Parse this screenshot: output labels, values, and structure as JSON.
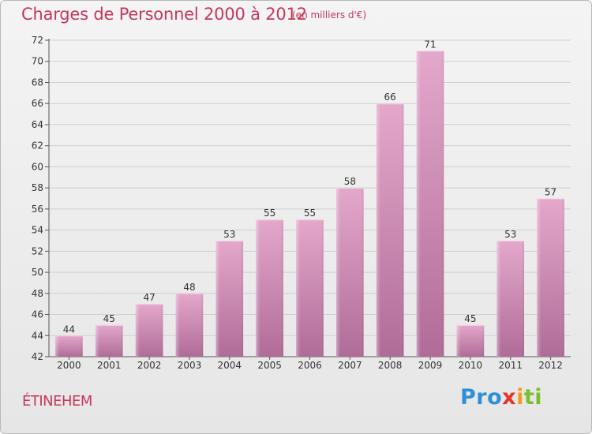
{
  "header": {
    "title": "Charges de Personnel 2000 à 2012",
    "subtitle": "(en milliers d'€)"
  },
  "footer": {
    "commune": "ÉTINEHEM",
    "logo_parts": [
      "Pro",
      "x",
      "i",
      "ti"
    ]
  },
  "colors": {
    "title": "#c4385e",
    "bar_top": "#e4a8cb",
    "bar_bottom": "#b06c98",
    "grid": "#cfcfcf"
  },
  "chart_data": {
    "type": "bar",
    "categories": [
      "2000",
      "2001",
      "2002",
      "2003",
      "2004",
      "2005",
      "2006",
      "2007",
      "2008",
      "2009",
      "2010",
      "2011",
      "2012"
    ],
    "values": [
      44,
      45,
      47,
      48,
      53,
      55,
      55,
      58,
      66,
      71,
      45,
      53,
      57
    ],
    "title": "Charges de Personnel 2000 à 2012",
    "subtitle": "(en milliers d'€)",
    "xlabel": "",
    "ylabel": "",
    "ylim": [
      42,
      72
    ],
    "ytick_step": 2,
    "grid": true,
    "value_labels": true
  }
}
